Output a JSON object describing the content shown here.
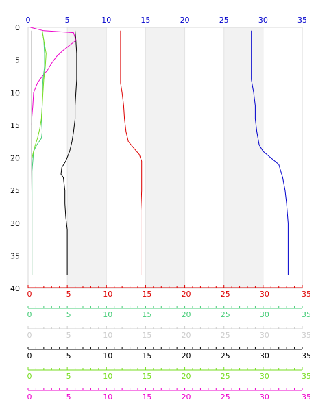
{
  "chart_data": {
    "type": "line",
    "y_axis": {
      "range": [
        0,
        40
      ],
      "ticks": [
        "0",
        "5",
        "10",
        "15",
        "20",
        "25",
        "30",
        "35",
        "40"
      ],
      "inverted": true
    },
    "top_axis": {
      "color": "#0000cc",
      "range": [
        0,
        35
      ],
      "ticks": [
        "0",
        "5",
        "10",
        "15",
        "20",
        "25",
        "30",
        "35"
      ]
    },
    "bottom_axes": [
      {
        "color": "#dd0000",
        "range": [
          0,
          35
        ],
        "ticks": [
          "0",
          "5",
          "10",
          "15",
          "20",
          "25",
          "30",
          "35"
        ]
      },
      {
        "color": "#44cc77",
        "range": [
          0,
          35
        ],
        "ticks": [
          "0",
          "5",
          "10",
          "15",
          "20",
          "25",
          "30",
          "35"
        ]
      },
      {
        "color": "#cccccc",
        "range": [
          0,
          35
        ],
        "ticks": [
          "0",
          "5",
          "10",
          "15",
          "20",
          "25",
          "30",
          "35"
        ]
      },
      {
        "color": "#000000",
        "range": [
          0,
          35
        ],
        "ticks": [
          "0",
          "5",
          "10",
          "15",
          "20",
          "25",
          "30",
          "35"
        ]
      },
      {
        "color": "#77dd22",
        "range": [
          0,
          35
        ],
        "ticks": [
          "0",
          "5",
          "10",
          "15",
          "20",
          "25",
          "30",
          "35"
        ]
      },
      {
        "color": "#ee00cc",
        "range": [
          0,
          35
        ],
        "ticks": [
          "0",
          "5",
          "10",
          "15",
          "20",
          "25",
          "30",
          "35"
        ]
      }
    ],
    "shaded_bands": [
      [
        5,
        10
      ],
      [
        15,
        20
      ],
      [
        25,
        30
      ]
    ],
    "grid": false,
    "series": [
      {
        "color": "#0000cc",
        "points": [
          [
            28.5,
            0.5
          ],
          [
            28.5,
            3
          ],
          [
            28.5,
            5
          ],
          [
            28.5,
            8
          ],
          [
            28.8,
            10
          ],
          [
            29,
            12
          ],
          [
            29,
            14
          ],
          [
            29.2,
            16
          ],
          [
            29.5,
            18
          ],
          [
            30,
            19
          ],
          [
            31,
            20
          ],
          [
            32,
            21
          ],
          [
            32.5,
            23
          ],
          [
            32.8,
            25
          ],
          [
            33,
            27
          ],
          [
            33.2,
            30
          ],
          [
            33.2,
            33
          ],
          [
            33.2,
            36
          ],
          [
            33.2,
            38
          ]
        ]
      },
      {
        "color": "#dd0000",
        "points": [
          [
            11.8,
            0.5
          ],
          [
            11.8,
            3
          ],
          [
            11.8,
            5
          ],
          [
            11.8,
            7
          ],
          [
            11.8,
            8.5
          ],
          [
            12,
            10
          ],
          [
            12.2,
            12
          ],
          [
            12.3,
            14
          ],
          [
            12.5,
            16
          ],
          [
            12.8,
            17.5
          ],
          [
            13.5,
            18.5
          ],
          [
            14.2,
            19.5
          ],
          [
            14.5,
            20.5
          ],
          [
            14.5,
            22
          ],
          [
            14.5,
            25
          ],
          [
            14.4,
            28
          ],
          [
            14.4,
            33
          ],
          [
            14.4,
            38
          ]
        ]
      },
      {
        "color": "#000000",
        "points": [
          [
            6,
            0.5
          ],
          [
            6.1,
            2
          ],
          [
            6.2,
            4
          ],
          [
            6.2,
            6
          ],
          [
            6.2,
            8
          ],
          [
            6.1,
            10
          ],
          [
            6,
            12
          ],
          [
            6,
            14
          ],
          [
            5.8,
            16
          ],
          [
            5.6,
            17.5
          ],
          [
            5.3,
            19
          ],
          [
            4.8,
            20.5
          ],
          [
            4.3,
            21.5
          ],
          [
            4.2,
            22.5
          ],
          [
            4.5,
            23
          ],
          [
            4.7,
            25
          ],
          [
            4.7,
            27
          ],
          [
            4.8,
            29
          ],
          [
            5,
            31
          ],
          [
            5,
            33
          ],
          [
            5,
            35
          ],
          [
            5,
            38
          ]
        ]
      },
      {
        "color": "#ee00cc",
        "points": [
          [
            0.3,
            0
          ],
          [
            2,
            0.5
          ],
          [
            5.8,
            0.8
          ],
          [
            6.1,
            2
          ],
          [
            4.5,
            3.5
          ],
          [
            3.6,
            4.5
          ],
          [
            3,
            5.5
          ],
          [
            2.5,
            6.5
          ],
          [
            1.8,
            7.5
          ],
          [
            1.2,
            8.5
          ],
          [
            0.7,
            10
          ],
          [
            0.6,
            12
          ],
          [
            0.5,
            13.5
          ],
          [
            0.4,
            15
          ]
        ]
      },
      {
        "color": "#44cc77",
        "points": [
          [
            1.8,
            0.5
          ],
          [
            2,
            2
          ],
          [
            2.1,
            4
          ],
          [
            2.1,
            6
          ],
          [
            1.9,
            8
          ],
          [
            1.8,
            10
          ],
          [
            1.8,
            12
          ],
          [
            1.7,
            14
          ],
          [
            1.8,
            16
          ],
          [
            1.7,
            17
          ],
          [
            1.1,
            18
          ],
          [
            0.7,
            19
          ],
          [
            0.6,
            20.5
          ],
          [
            0.5,
            22
          ],
          [
            0.5,
            24
          ],
          [
            0.5,
            26
          ],
          [
            0.5,
            30
          ],
          [
            0.5,
            34
          ],
          [
            0.5,
            38
          ]
        ]
      },
      {
        "color": "#77dd22",
        "points": [
          [
            1.8,
            0.5
          ],
          [
            2,
            2
          ],
          [
            2.3,
            4
          ],
          [
            2.2,
            6
          ],
          [
            2,
            8
          ],
          [
            1.9,
            10
          ],
          [
            1.8,
            12
          ],
          [
            1.7,
            14
          ],
          [
            1.5,
            15.5
          ],
          [
            1.2,
            17
          ],
          [
            0.8,
            18.5
          ],
          [
            0.5,
            20
          ]
        ]
      },
      {
        "color": "#cccccc",
        "points": [
          [
            0.4,
            0.5
          ],
          [
            0.4,
            3
          ],
          [
            0.4,
            6
          ],
          [
            0.4,
            10
          ],
          [
            0.4,
            14
          ],
          [
            0.4,
            18
          ],
          [
            0.4,
            22
          ],
          [
            0.5,
            26
          ],
          [
            0.5,
            30
          ],
          [
            0.5,
            34
          ],
          [
            0.5,
            38
          ]
        ]
      }
    ]
  }
}
